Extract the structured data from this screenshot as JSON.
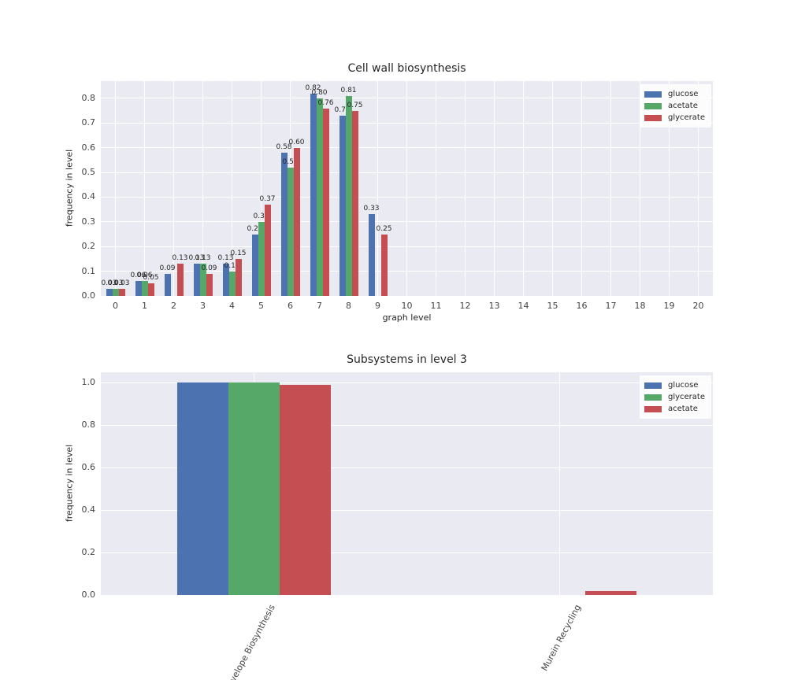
{
  "figure": {
    "background": "#ffffff",
    "axes_background": "#EAEAF2",
    "grid_color": "#ffffff"
  },
  "chart_data": [
    {
      "type": "bar",
      "title": "Cell wall biosynthesis",
      "xlabel": "graph level",
      "ylabel": "frequency in level",
      "categories": [
        "0",
        "1",
        "2",
        "3",
        "4",
        "5",
        "6",
        "7",
        "8",
        "9",
        "10",
        "11",
        "12",
        "13",
        "14",
        "15",
        "16",
        "17",
        "18",
        "19",
        "20"
      ],
      "ylim": [
        0,
        0.87
      ],
      "yticks": [
        0,
        0.1,
        0.2,
        0.3,
        0.4,
        0.5,
        0.6,
        0.7,
        0.8
      ],
      "grid": true,
      "legend_position": "upper right",
      "bar_value_labels": true,
      "series": [
        {
          "name": "glucose",
          "color": "#4C72B0",
          "values": [
            0.03,
            0.06,
            0.09,
            0.13,
            0.13,
            0.25,
            0.58,
            0.82,
            0.73,
            0.33,
            0,
            0,
            0,
            0,
            0,
            0,
            0,
            0,
            0,
            0,
            0
          ]
        },
        {
          "name": "acetate",
          "color": "#55A868",
          "values": [
            0.03,
            0.06,
            0,
            0.13,
            0.1,
            0.3,
            0.52,
            0.8,
            0.81,
            0,
            0,
            0,
            0,
            0,
            0,
            0,
            0,
            0,
            0,
            0,
            0
          ]
        },
        {
          "name": "glycerate",
          "color": "#C44E52",
          "values": [
            0.03,
            0.05,
            0.13,
            0.09,
            0.15,
            0.37,
            0.6,
            0.76,
            0.75,
            0.25,
            0,
            0,
            0,
            0,
            0,
            0,
            0,
            0,
            0,
            0,
            0
          ]
        }
      ]
    },
    {
      "type": "bar",
      "title": "Subsystems in level 3",
      "xlabel": "",
      "ylabel": "frequency in level",
      "categories": [
        "Cell Envelope Biosynthesis",
        "Murein Recycling"
      ],
      "ylim": [
        0,
        1.05
      ],
      "yticks": [
        0,
        0.2,
        0.4,
        0.6,
        0.8,
        1.0
      ],
      "grid": true,
      "legend_position": "upper right",
      "bar_value_labels": false,
      "series": [
        {
          "name": "glucose",
          "color": "#4C72B0",
          "values": [
            1.0,
            0
          ]
        },
        {
          "name": "glycerate",
          "color": "#55A868",
          "values": [
            1.0,
            0
          ]
        },
        {
          "name": "acetate",
          "color": "#C44E52",
          "values": [
            0.99,
            0.02
          ]
        }
      ]
    }
  ]
}
